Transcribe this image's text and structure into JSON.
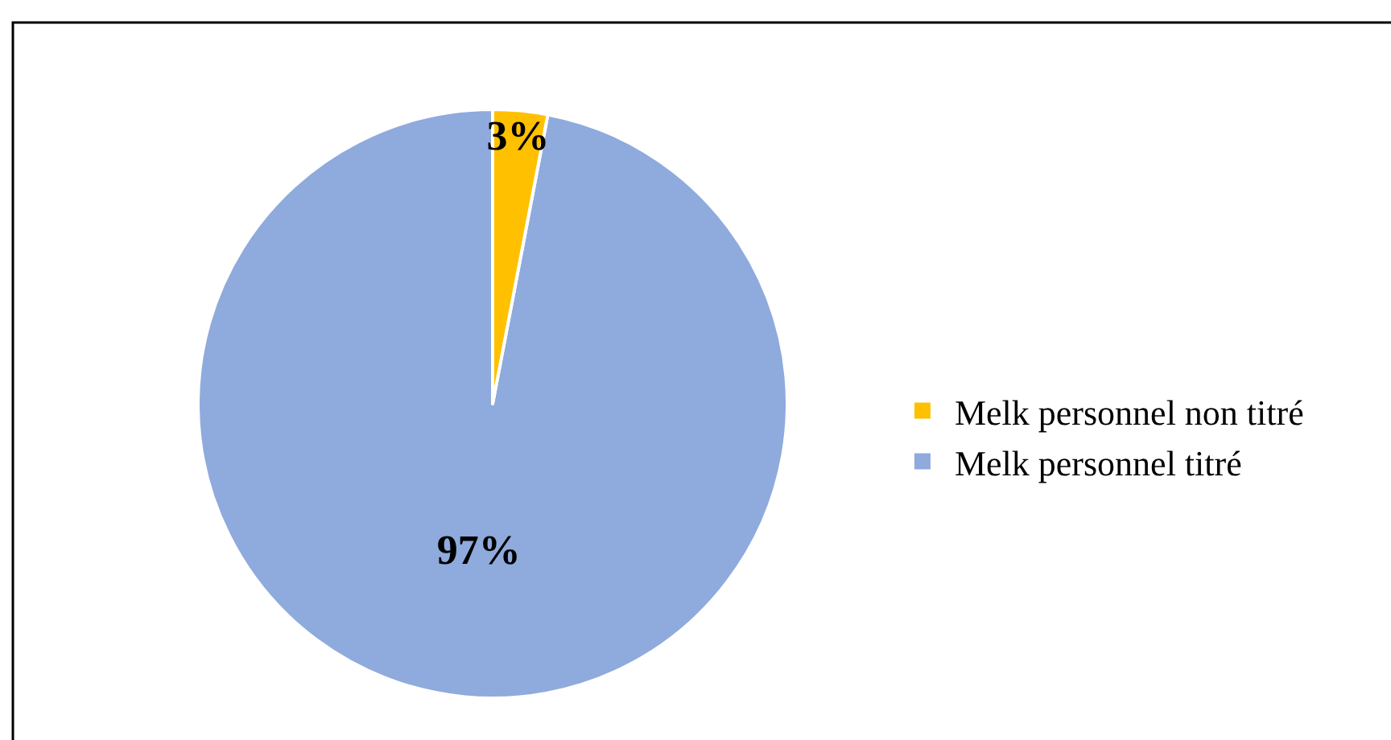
{
  "chart_data": {
    "type": "pie",
    "categories": [
      "Melk personnel non titré",
      "Melk personnel titré"
    ],
    "values": [
      3,
      97
    ],
    "colors": [
      "#ffc000",
      "#8faadc"
    ],
    "value_labels": [
      "3%",
      "97%"
    ],
    "legend": "right"
  }
}
